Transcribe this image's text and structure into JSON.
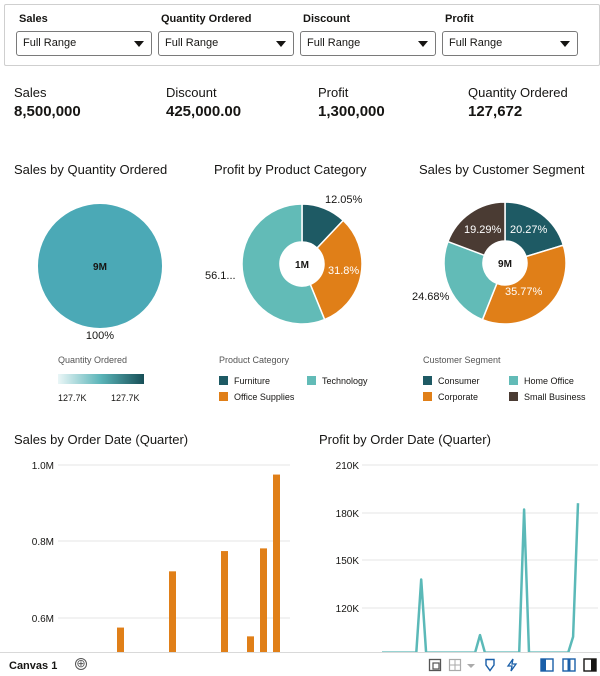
{
  "filters": [
    {
      "label": "Sales",
      "value": "Full Range"
    },
    {
      "label": "Quantity Ordered",
      "value": "Full Range"
    },
    {
      "label": "Discount",
      "value": "Full Range"
    },
    {
      "label": "Profit",
      "value": "Full Range"
    }
  ],
  "kpis": [
    {
      "label": "Sales",
      "value": "8,500,000"
    },
    {
      "label": "Discount",
      "value": "425,000.00"
    },
    {
      "label": "Profit",
      "value": "1,300,000"
    },
    {
      "label": "Quantity Ordered",
      "value": "127,672"
    }
  ],
  "legends": {
    "qty_title": "Quantity Ordered",
    "qty_min": "127.7K",
    "qty_max": "127.7K",
    "category_title": "Product Category",
    "segment_title": "Customer Segment"
  },
  "canvas": {
    "tab_label": "Canvas 1",
    "add_glyph": "⊕"
  },
  "colors": {
    "teal": "#4ba9b6",
    "dark_teal": "#1e5a64",
    "light_teal": "#62bbb7",
    "orange": "#e07f18",
    "dark_brown": "#4a3b33",
    "line_teal": "#5bb9b8",
    "bar_orange": "#e07f18"
  },
  "chart_data": [
    {
      "type": "pie",
      "title": "Sales by Quantity Ordered",
      "center_label": "9M",
      "slices": [
        {
          "name": "127.7K",
          "value": 100,
          "label": "100%",
          "color": "#4ba9b6"
        }
      ]
    },
    {
      "type": "pie",
      "title": "Profit by Product Category",
      "center_label": "1M",
      "legend_title": "Product Category",
      "slices": [
        {
          "name": "Furniture",
          "value": 12.05,
          "label": "12.05%",
          "color": "#1e5a64"
        },
        {
          "name": "Office Supplies",
          "value": 31.8,
          "label": "31.8%",
          "color": "#e07f18"
        },
        {
          "name": "Technology",
          "value": 56.15,
          "label": "56.1...",
          "color": "#62bbb7"
        }
      ]
    },
    {
      "type": "pie",
      "title": "Sales by Customer Segment",
      "center_label": "9M",
      "legend_title": "Customer Segment",
      "slices": [
        {
          "name": "Consumer",
          "value": 20.27,
          "label": "20.27%",
          "color": "#1e5a64"
        },
        {
          "name": "Corporate",
          "value": 35.77,
          "label": "35.77%",
          "color": "#e07f18"
        },
        {
          "name": "Home Office",
          "value": 24.68,
          "label": "24.68%",
          "color": "#62bbb7"
        },
        {
          "name": "Small Business",
          "value": 19.29,
          "label": "19.29%",
          "color": "#4a3b33"
        }
      ]
    },
    {
      "type": "bar",
      "title": "Sales by Order Date (Quarter)",
      "y_ticks": [
        "1.0M",
        "0.8M",
        "0.6M"
      ],
      "y_tick_values": [
        1000000,
        800000,
        600000
      ],
      "ylim": [
        500000,
        1000000
      ],
      "values": [
        575000,
        722000,
        775000,
        552000,
        782000,
        975000
      ],
      "color": "#e07f18"
    },
    {
      "type": "line",
      "title": "Profit by Order Date (Quarter)",
      "y_ticks": [
        "210K",
        "180K",
        "150K",
        "120K"
      ],
      "y_tick_values": [
        210000,
        180000,
        150000,
        120000
      ],
      "ylim": [
        95000,
        210000
      ],
      "values": [
        92000,
        92000,
        92000,
        92000,
        92000,
        92000,
        92000,
        92000,
        138000,
        92000,
        92000,
        92000,
        92000,
        92000,
        92000,
        92000,
        92000,
        92000,
        92000,
        92000,
        103000,
        92000,
        92000,
        92000,
        92000,
        92000,
        92000,
        92000,
        92000,
        182000,
        92000,
        92000,
        92000,
        92000,
        92000,
        92000,
        92000,
        92000,
        92000,
        102000,
        186000
      ],
      "color": "#5bb9b8"
    }
  ]
}
